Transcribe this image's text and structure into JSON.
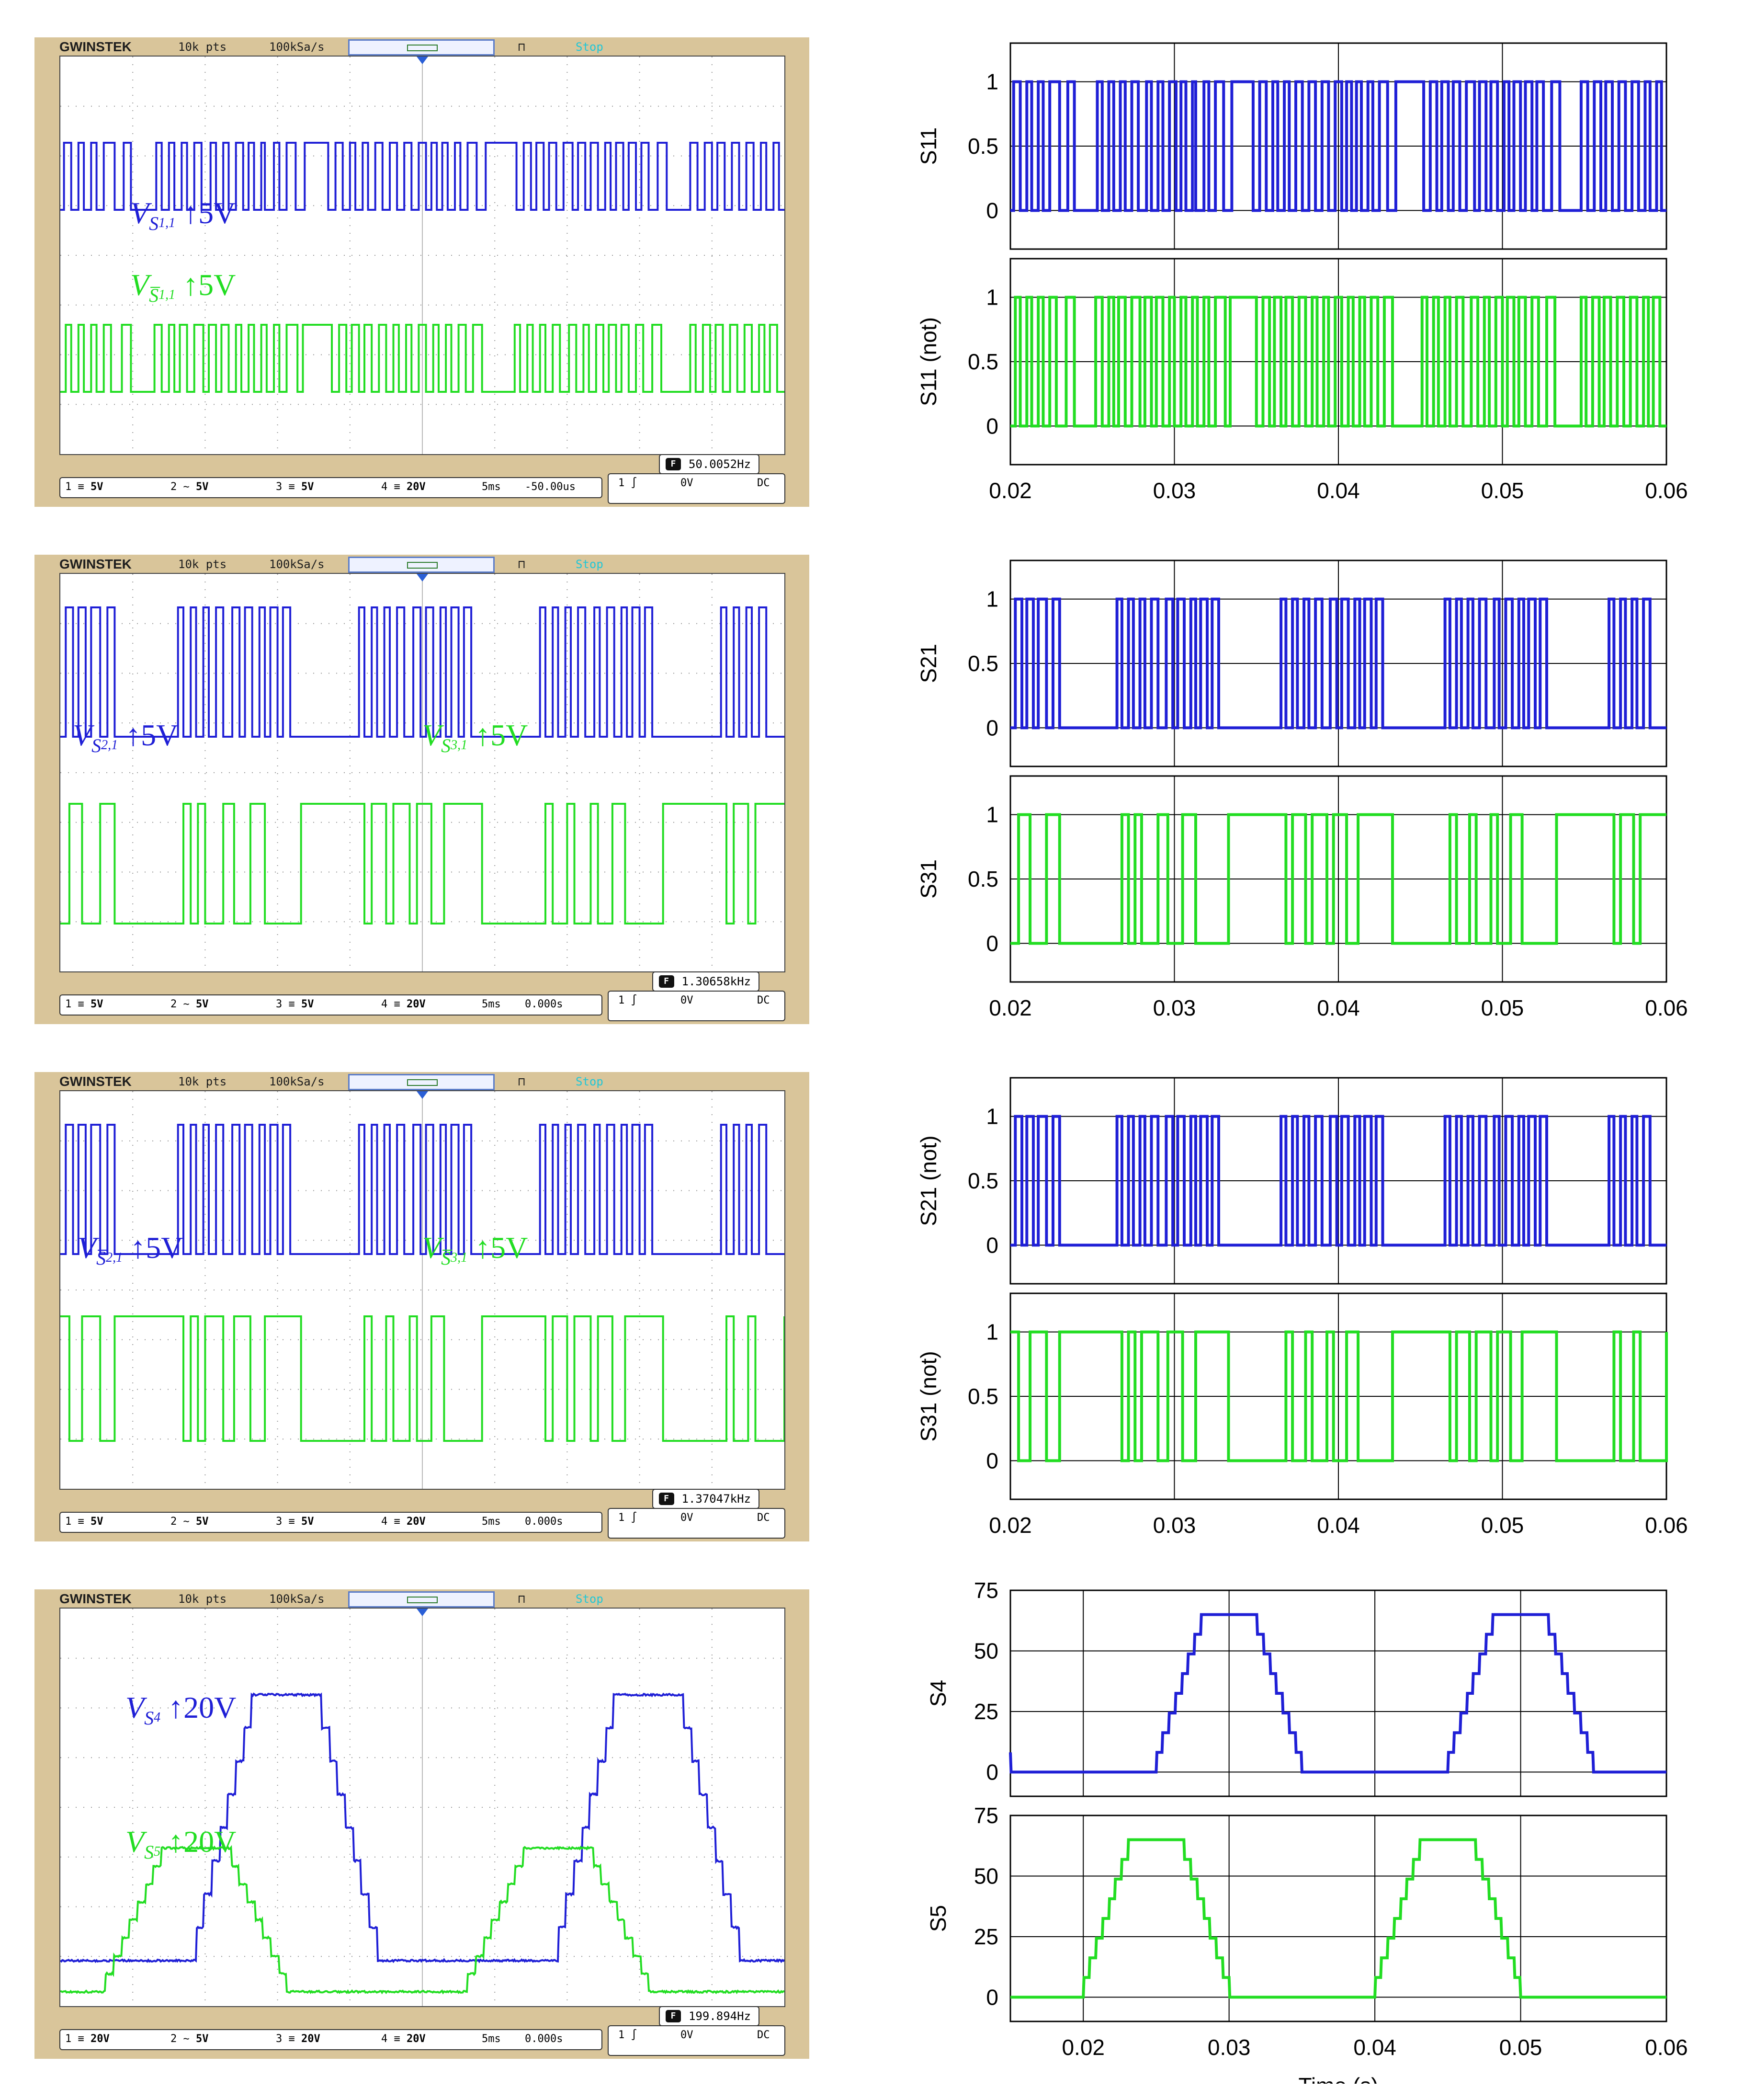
{
  "scopes": [
    {
      "header": {
        "brand": "GWINSTEK",
        "points": "10k pts",
        "rate": "100kSa/s",
        "state": "Stop"
      },
      "freq": "50.0052Hz",
      "channels": {
        "ch1": "5V",
        "ch2": "5V",
        "ch3": "5V",
        "ch4": "20V",
        "time": "5ms",
        "offset": "-50.00us"
      },
      "trigger": {
        "level": "0V",
        "coupling": "DC"
      },
      "labels": {
        "top": {
          "sym": "V",
          "sub": "S",
          "sub2": "1,1",
          "scale": "5V"
        },
        "bottom": {
          "sym": "V",
          "sub": "S̅",
          "sub2": "1,1",
          "scale": "5V"
        }
      }
    },
    {
      "header": {
        "brand": "GWINSTEK",
        "points": "10k pts",
        "rate": "100kSa/s",
        "state": "Stop"
      },
      "freq": "1.30658kHz",
      "channels": {
        "ch1": "5V",
        "ch2": "5V",
        "ch3": "5V",
        "ch4": "20V",
        "time": "5ms",
        "offset": "0.000s"
      },
      "trigger": {
        "level": "0V",
        "coupling": "DC"
      },
      "labels": {
        "top": {
          "sym": "V",
          "sub": "S",
          "sub2": "2,1",
          "scale": "5V"
        },
        "bottom": {
          "sym": "V",
          "sub": "S",
          "sub2": "3,1",
          "scale": "5V"
        }
      }
    },
    {
      "header": {
        "brand": "GWINSTEK",
        "points": "10k pts",
        "rate": "100kSa/s",
        "state": "Stop"
      },
      "freq": "1.37047kHz",
      "channels": {
        "ch1": "5V",
        "ch2": "5V",
        "ch3": "5V",
        "ch4": "20V",
        "time": "5ms",
        "offset": "0.000s"
      },
      "trigger": {
        "level": "0V",
        "coupling": "DC"
      },
      "labels": {
        "top": {
          "sym": "V",
          "sub": "S̅",
          "sub2": "2,1",
          "scale": "5V"
        },
        "bottom": {
          "sym": "V",
          "sub": "S̅",
          "sub2": "3,1",
          "scale": "5V"
        }
      }
    },
    {
      "header": {
        "brand": "GWINSTEK",
        "points": "10k pts",
        "rate": "100kSa/s",
        "state": "Stop"
      },
      "freq": "199.894Hz",
      "channels": {
        "ch1": "20V",
        "ch2": "5V",
        "ch3": "20V",
        "ch4": "20V",
        "time": "5ms",
        "offset": "0.000s"
      },
      "trigger": {
        "level": "0V",
        "coupling": "DC"
      },
      "labels": {
        "top": {
          "sym": "V",
          "sub": "S",
          "sub2": "4",
          "scale": "20V"
        },
        "bottom": {
          "sym": "V",
          "sub": "S",
          "sub2": "5",
          "scale": "20V"
        }
      }
    }
  ],
  "colors": {
    "blue": "#1f1fd6",
    "green": "#22dd22",
    "scope_bg": "#d9c59a",
    "run": "#21c7d7"
  },
  "chart_data": [
    {
      "type": "line",
      "title": "S11 / S11 (not)",
      "xlabel": "Time (s)",
      "x_ticks": [
        "0.02",
        "0.03",
        "0.04",
        "0.05",
        "0.06"
      ],
      "xlim": [
        0.02,
        0.06
      ],
      "series": [
        {
          "name": "S11",
          "ylabel": "S11",
          "yticks": [
            "1",
            "0.5",
            "0"
          ],
          "ylim": [
            -0.3,
            1.3
          ],
          "edges": [
            0.0202,
            0.0206,
            0.021,
            0.0213,
            0.0217,
            0.022,
            0.0224,
            0.023,
            0.0235,
            0.0239,
            0.0253,
            0.0256,
            0.026,
            0.0263,
            0.0267,
            0.027,
            0.0274,
            0.0278,
            0.0283,
            0.0286,
            0.029,
            0.0293,
            0.0297,
            0.0301,
            0.0304,
            0.0307,
            0.0311,
            0.0313,
            0.0318,
            0.0321,
            0.0325,
            0.033,
            0.0335,
            0.0348,
            0.0352,
            0.0356,
            0.036,
            0.0363,
            0.0367,
            0.037,
            0.0374,
            0.0378,
            0.0382,
            0.0386,
            0.039,
            0.0394,
            0.0398,
            0.0402,
            0.0405,
            0.0408,
            0.0411,
            0.0414,
            0.0418,
            0.0421,
            0.0425,
            0.043,
            0.0435,
            0.0452,
            0.0456,
            0.046,
            0.0463,
            0.0467,
            0.047,
            0.0474,
            0.0478,
            0.0483,
            0.0486,
            0.049,
            0.0493,
            0.0497,
            0.0501,
            0.0504,
            0.0507,
            0.0511,
            0.0514,
            0.0518,
            0.0521,
            0.0525,
            0.053,
            0.0535,
            0.0548,
            0.0552,
            0.0556,
            0.056,
            0.0563,
            0.0567,
            0.0571,
            0.0575,
            0.0579,
            0.0583,
            0.0587,
            0.059,
            0.0594,
            0.0597
          ]
        },
        {
          "name": "S11 (not)",
          "ylabel": "S11 (not)",
          "yticks": [
            "1",
            "0.5",
            "0"
          ],
          "ylim": [
            -0.3,
            1.3
          ],
          "edges": [
            0.0203,
            0.0206,
            0.021,
            0.0213,
            0.0217,
            0.022,
            0.0224,
            0.0228,
            0.0234,
            0.0239,
            0.0252,
            0.0256,
            0.026,
            0.0263,
            0.0266,
            0.027,
            0.0274,
            0.0279,
            0.0282,
            0.0286,
            0.0289,
            0.0293,
            0.0297,
            0.03,
            0.0304,
            0.0307,
            0.0311,
            0.0314,
            0.0318,
            0.0321,
            0.0325,
            0.0331,
            0.0334,
            0.035,
            0.0354,
            0.0358,
            0.0361,
            0.0365,
            0.0368,
            0.0372,
            0.0376,
            0.038,
            0.0384,
            0.0387,
            0.0391,
            0.0394,
            0.0398,
            0.0402,
            0.0406,
            0.0409,
            0.0413,
            0.0416,
            0.042,
            0.0424,
            0.0428,
            0.0433,
            0.0451,
            0.0454,
            0.0458,
            0.0461,
            0.0465,
            0.0468,
            0.0472,
            0.0476,
            0.0481,
            0.0485,
            0.0489,
            0.0492,
            0.0496,
            0.05,
            0.0503,
            0.0507,
            0.051,
            0.0514,
            0.0518,
            0.0522,
            0.0527,
            0.0532,
            0.0548,
            0.0551,
            0.0555,
            0.0559,
            0.0562,
            0.0566,
            0.057,
            0.0574,
            0.0578,
            0.0582,
            0.0586,
            0.0589,
            0.0592,
            0.0596
          ]
        }
      ]
    },
    {
      "type": "line",
      "title": "S21 / S31",
      "xlabel": "Time (s)",
      "x_ticks": [
        "0.02",
        "0.03",
        "0.04",
        "0.05",
        "0.06"
      ],
      "xlim": [
        0.02,
        0.06
      ],
      "series": [
        {
          "name": "S21",
          "ylabel": "S21",
          "yticks": [
            "1",
            "0.5",
            "0"
          ],
          "ylim": [
            -0.3,
            1.3
          ],
          "edges": [
            0.0203,
            0.0207,
            0.021,
            0.0214,
            0.0217,
            0.0222,
            0.0226,
            0.023,
            0.0265,
            0.0268,
            0.0272,
            0.0275,
            0.0279,
            0.0282,
            0.0286,
            0.029,
            0.0295,
            0.0299,
            0.0302,
            0.0306,
            0.031,
            0.0313,
            0.0316,
            0.032,
            0.0323,
            0.0327,
            0.0365,
            0.0368,
            0.0372,
            0.0375,
            0.0379,
            0.0382,
            0.0386,
            0.039,
            0.0395,
            0.0399,
            0.0402,
            0.0406,
            0.041,
            0.0413,
            0.0416,
            0.042,
            0.0423,
            0.0427,
            0.0465,
            0.0468,
            0.0472,
            0.0475,
            0.0479,
            0.0482,
            0.0486,
            0.049,
            0.0495,
            0.0498,
            0.0502,
            0.0506,
            0.051,
            0.0513,
            0.0516,
            0.052,
            0.0523,
            0.0527,
            0.0565,
            0.0568,
            0.0572,
            0.0575,
            0.0579,
            0.0582,
            0.0586,
            0.059
          ]
        },
        {
          "name": "S31",
          "ylabel": "S31",
          "yticks": [
            "1",
            "0.5",
            "0"
          ],
          "ylim": [
            -0.3,
            1.3
          ],
          "edges": [
            0.0205,
            0.0212,
            0.0222,
            0.023,
            0.0268,
            0.0272,
            0.0276,
            0.028,
            0.029,
            0.0296,
            0.0305,
            0.0313,
            0.0333,
            0.0368,
            0.0372,
            0.038,
            0.0384,
            0.0393,
            0.0397,
            0.0405,
            0.0412,
            0.0433,
            0.0468,
            0.0472,
            0.048,
            0.0484,
            0.0493,
            0.0497,
            0.0505,
            0.0512,
            0.0533,
            0.0568,
            0.0572,
            0.058,
            0.0584
          ]
        }
      ]
    },
    {
      "type": "line",
      "title": "S21 (not) / S31 (not)",
      "xlabel": "Time (s)",
      "x_ticks": [
        "0.02",
        "0.03",
        "0.04",
        "0.05",
        "0.06"
      ],
      "xlim": [
        0.02,
        0.06
      ],
      "series": [
        {
          "name": "S21 (not)",
          "ylabel": "S21 (not)",
          "yticks": [
            "1",
            "0.5",
            "0"
          ],
          "ylim": [
            -0.3,
            1.3
          ],
          "edges": [
            0.0203,
            0.0207,
            0.021,
            0.0214,
            0.0217,
            0.0222,
            0.0226,
            0.023,
            0.0265,
            0.0268,
            0.0272,
            0.0275,
            0.0279,
            0.0282,
            0.0286,
            0.029,
            0.0295,
            0.0299,
            0.0302,
            0.0306,
            0.031,
            0.0313,
            0.0316,
            0.032,
            0.0323,
            0.0327,
            0.0365,
            0.0368,
            0.0372,
            0.0375,
            0.0379,
            0.0382,
            0.0386,
            0.039,
            0.0395,
            0.0399,
            0.0402,
            0.0406,
            0.041,
            0.0413,
            0.0416,
            0.042,
            0.0423,
            0.0427,
            0.0465,
            0.0468,
            0.0472,
            0.0475,
            0.0479,
            0.0482,
            0.0486,
            0.049,
            0.0495,
            0.0498,
            0.0502,
            0.0506,
            0.051,
            0.0513,
            0.0516,
            0.052,
            0.0523,
            0.0527,
            0.0565,
            0.0568,
            0.0572,
            0.0575,
            0.0579,
            0.0582,
            0.0586,
            0.059
          ]
        },
        {
          "name": "S31 (not)",
          "ylabel": "S31 (not)",
          "yticks": [
            "1",
            "0.5",
            "0"
          ],
          "ylim": [
            -0.3,
            1.3
          ],
          "start_high": true,
          "edges": [
            0.0205,
            0.0212,
            0.0222,
            0.023,
            0.0268,
            0.0272,
            0.0276,
            0.028,
            0.029,
            0.0296,
            0.0305,
            0.0313,
            0.0333,
            0.0368,
            0.0372,
            0.038,
            0.0384,
            0.0393,
            0.0397,
            0.0405,
            0.0412,
            0.0433,
            0.0468,
            0.0472,
            0.048,
            0.0484,
            0.0493,
            0.0497,
            0.0505,
            0.0512,
            0.0533,
            0.0568,
            0.0572,
            0.058,
            0.0584,
            0.06
          ]
        }
      ]
    },
    {
      "type": "line",
      "title": "S4 / S5",
      "xlabel": "Time (s)",
      "x_ticks": [
        "0.02",
        "0.03",
        "0.04",
        "0.05",
        "0.06"
      ],
      "xlim": [
        0.015,
        0.06
      ],
      "series": [
        {
          "name": "S4",
          "ylabel": "S4",
          "yticks": [
            "75",
            "50",
            "25",
            "0"
          ],
          "ylim": [
            -10,
            75
          ],
          "shape": "staircase",
          "peak": 65,
          "offset": 0.005
        },
        {
          "name": "S5",
          "ylabel": "S5",
          "yticks": [
            "75",
            "50",
            "25",
            "0"
          ],
          "ylim": [
            -10,
            75
          ],
          "shape": "staircase",
          "peak": 65,
          "offset": 0.0
        }
      ]
    }
  ]
}
